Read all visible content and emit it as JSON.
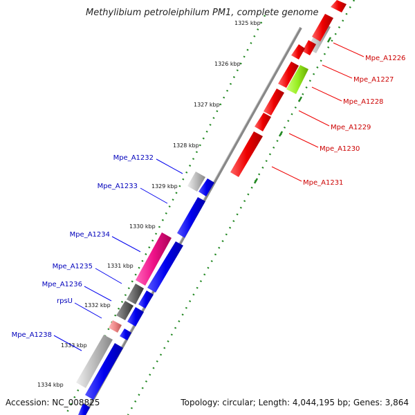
{
  "header": {
    "title": "Methylibium petroleiphilum PM1, complete genome"
  },
  "footer": {
    "accession": "Accession: NC_008825",
    "summary": "Topology: circular; Length: 4,044,195 bp; Genes: 3,864"
  },
  "ticks": [
    "1325 kbp",
    "1326 kbp",
    "1327 kbp",
    "1328 kbp",
    "1329 kbp",
    "1330 kbp",
    "1331 kbp",
    "1332 kbp",
    "1333 kbp",
    "1334 kbp"
  ],
  "forward_labels": [
    "Mpe_A1226",
    "Mpe_A1227",
    "Mpe_A1228",
    "Mpe_A1229",
    "Mpe_A1230",
    "Mpe_A1231"
  ],
  "reverse_labels": [
    "Mpe_A1232",
    "Mpe_A1233",
    "Mpe_A1234",
    "Mpe_A1235",
    "Mpe_A1236",
    "rpsU",
    "Mpe_A1238"
  ],
  "colors": {
    "forward_label": "#cc0000",
    "reverse_label": "#0000bb",
    "forward_gene": "#ee0000",
    "reverse_gene": "#0000ee",
    "grey_gene": "#bbbbbb",
    "magenta_gene": "#ee1188",
    "yellowgreen_gene": "#99ee22",
    "salmon_gene": "#ee8888",
    "darkgrey_gene": "#666666",
    "backbone": "#888888",
    "tick_mark": "#228822"
  }
}
